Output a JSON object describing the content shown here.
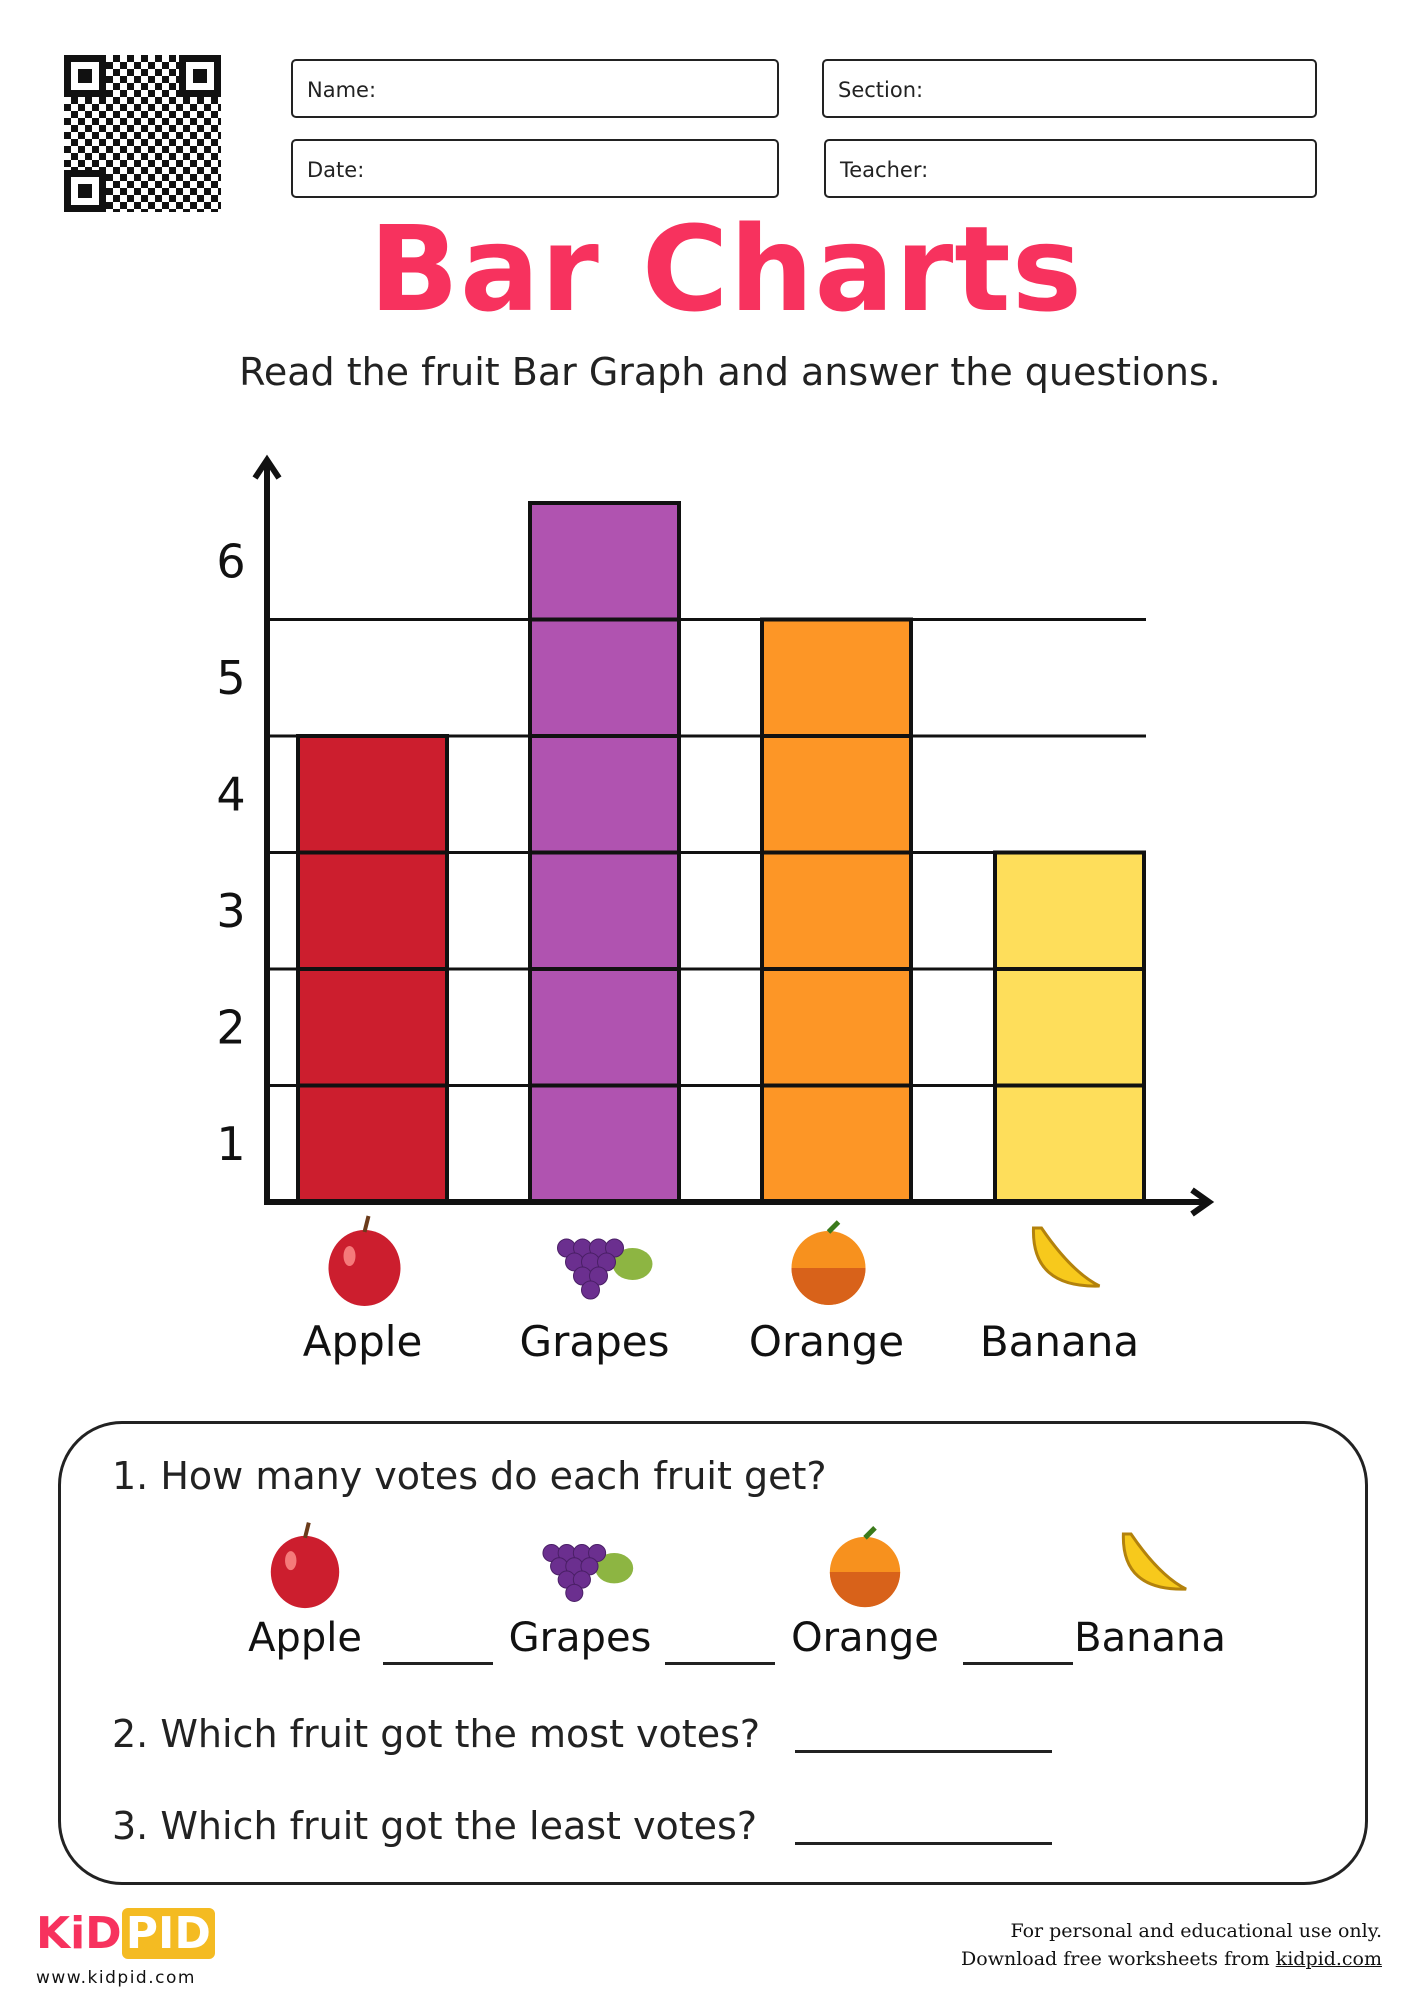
{
  "header": {
    "name_label": "Name:",
    "section_label": "Section:",
    "date_label": "Date:",
    "teacher_label": "Teacher:"
  },
  "title": "Bar Charts",
  "subtitle": "Read the fruit Bar Graph and answer the questions.",
  "chart_data": {
    "type": "bar",
    "categories": [
      "Apple",
      "Grapes",
      "Orange",
      "Banana"
    ],
    "values": [
      4,
      6,
      5,
      3
    ],
    "colors": [
      "#cc1e2e",
      "#b053b0",
      "#fd9626",
      "#fede5b"
    ],
    "yticks": [
      "1",
      "2",
      "3",
      "4",
      "5",
      "6"
    ],
    "ylim": [
      0,
      6
    ],
    "grid": true,
    "xlabel": "",
    "ylabel": ""
  },
  "questions": {
    "q1": "1. How many votes do each fruit get?",
    "fruits": [
      "Apple",
      "Grapes",
      "Orange",
      "Banana"
    ],
    "q2": "2. Which fruit got the most votes?",
    "q3": "3. Which fruit got the least votes?"
  },
  "footer": {
    "logo_kid": "KiD",
    "logo_pid": "PID",
    "url": "www.kidpid.com",
    "line1": "For personal and educational use only.",
    "line2_prefix": "Download free worksheets from ",
    "line2_link": "kidpid.com"
  }
}
